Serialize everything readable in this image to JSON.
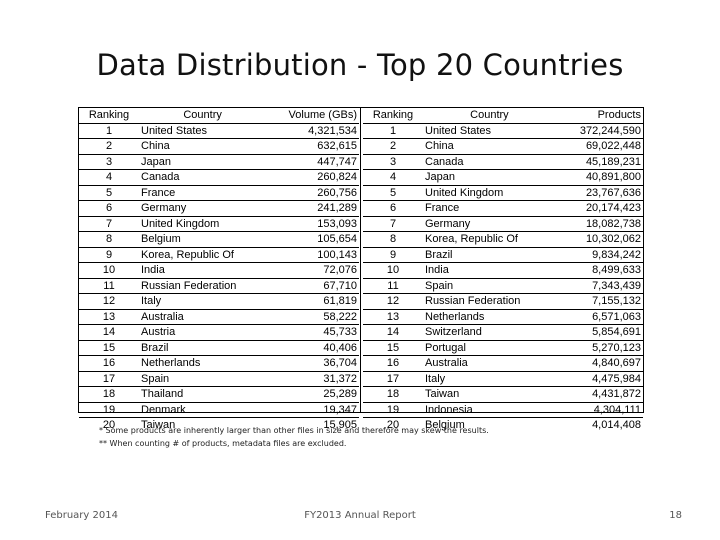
{
  "title": "Data Distribution - Top 20 Countries",
  "volume_table": {
    "headers": {
      "rank": "Ranking",
      "country": "Country",
      "value": "Volume (GBs)"
    },
    "rows": [
      {
        "rank": "1",
        "country": "United States",
        "value": "4,321,534"
      },
      {
        "rank": "2",
        "country": "China",
        "value": "632,615"
      },
      {
        "rank": "3",
        "country": "Japan",
        "value": "447,747"
      },
      {
        "rank": "4",
        "country": "Canada",
        "value": "260,824"
      },
      {
        "rank": "5",
        "country": "France",
        "value": "260,756"
      },
      {
        "rank": "6",
        "country": "Germany",
        "value": "241,289"
      },
      {
        "rank": "7",
        "country": "United Kingdom",
        "value": "153,093"
      },
      {
        "rank": "8",
        "country": "Belgium",
        "value": "105,654"
      },
      {
        "rank": "9",
        "country": "Korea, Republic Of",
        "value": "100,143"
      },
      {
        "rank": "10",
        "country": "India",
        "value": "72,076"
      },
      {
        "rank": "11",
        "country": "Russian Federation",
        "value": "67,710"
      },
      {
        "rank": "12",
        "country": "Italy",
        "value": "61,819"
      },
      {
        "rank": "13",
        "country": "Australia",
        "value": "58,222"
      },
      {
        "rank": "14",
        "country": "Austria",
        "value": "45,733"
      },
      {
        "rank": "15",
        "country": "Brazil",
        "value": "40,406"
      },
      {
        "rank": "16",
        "country": "Netherlands",
        "value": "36,704"
      },
      {
        "rank": "17",
        "country": "Spain",
        "value": "31,372"
      },
      {
        "rank": "18",
        "country": "Thailand",
        "value": "25,289"
      },
      {
        "rank": "19",
        "country": "Denmark",
        "value": "19,347"
      },
      {
        "rank": "20",
        "country": "Taiwan",
        "value": "15,905"
      }
    ]
  },
  "products_table": {
    "headers": {
      "rank": "Ranking",
      "country": "Country",
      "value": "Products"
    },
    "rows": [
      {
        "rank": "1",
        "country": "United States",
        "value": "372,244,590"
      },
      {
        "rank": "2",
        "country": "China",
        "value": "69,022,448"
      },
      {
        "rank": "3",
        "country": "Canada",
        "value": "45,189,231"
      },
      {
        "rank": "4",
        "country": "Japan",
        "value": "40,891,800"
      },
      {
        "rank": "5",
        "country": "United Kingdom",
        "value": "23,767,636"
      },
      {
        "rank": "6",
        "country": "France",
        "value": "20,174,423"
      },
      {
        "rank": "7",
        "country": "Germany",
        "value": "18,082,738"
      },
      {
        "rank": "8",
        "country": "Korea, Republic Of",
        "value": "10,302,062"
      },
      {
        "rank": "9",
        "country": "Brazil",
        "value": "9,834,242"
      },
      {
        "rank": "10",
        "country": "India",
        "value": "8,499,633"
      },
      {
        "rank": "11",
        "country": "Spain",
        "value": "7,343,439"
      },
      {
        "rank": "12",
        "country": "Russian Federation",
        "value": "7,155,132"
      },
      {
        "rank": "13",
        "country": "Netherlands",
        "value": "6,571,063"
      },
      {
        "rank": "14",
        "country": "Switzerland",
        "value": "5,854,691"
      },
      {
        "rank": "15",
        "country": "Portugal",
        "value": "5,270,123"
      },
      {
        "rank": "16",
        "country": "Australia",
        "value": "4,840,697"
      },
      {
        "rank": "17",
        "country": "Italy",
        "value": "4,475,984"
      },
      {
        "rank": "18",
        "country": "Taiwan",
        "value": "4,431,872"
      },
      {
        "rank": "19",
        "country": "Indonesia",
        "value": "4,304,111"
      },
      {
        "rank": "20",
        "country": "Belgium",
        "value": "4,014,408"
      }
    ]
  },
  "footnotes": [
    "* Some products are inherently larger than other files in size and therefore may skew the results.",
    "** When counting # of products, metadata files are excluded."
  ],
  "footer": {
    "date": "February 2014",
    "report": "FY2013 Annual Report",
    "page": "18"
  }
}
